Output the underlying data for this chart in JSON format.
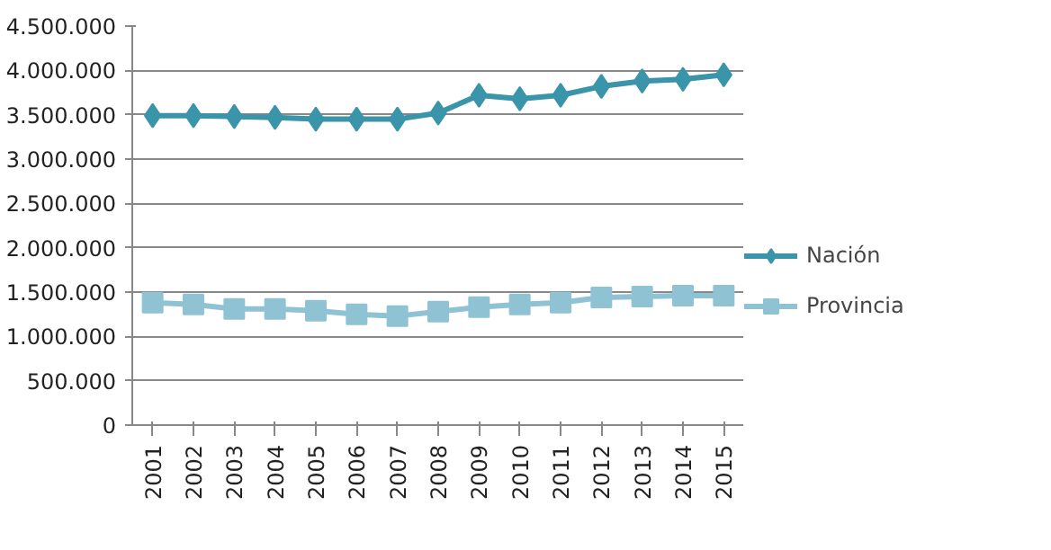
{
  "chart_data": {
    "type": "line",
    "categories": [
      "2001",
      "2002",
      "2003",
      "2004",
      "2005",
      "2006",
      "2007",
      "2008",
      "2009",
      "2010",
      "2011",
      "2012",
      "2013",
      "2014",
      "2015"
    ],
    "series": [
      {
        "name": "Nación",
        "color": "#3a94aa",
        "marker": "diamond",
        "values": [
          3490000,
          3490000,
          3480000,
          3470000,
          3450000,
          3450000,
          3450000,
          3520000,
          3720000,
          3680000,
          3720000,
          3820000,
          3880000,
          3900000,
          3950000
        ]
      },
      {
        "name": "Provincia",
        "color": "#8fc3d4",
        "marker": "square",
        "values": [
          1380000,
          1360000,
          1310000,
          1310000,
          1290000,
          1250000,
          1230000,
          1280000,
          1330000,
          1360000,
          1380000,
          1440000,
          1450000,
          1460000,
          1460000
        ]
      }
    ],
    "ylim": [
      0,
      4500000
    ],
    "yticks": [
      {
        "value": 0,
        "label": "0"
      },
      {
        "value": 500000,
        "label": "500.000"
      },
      {
        "value": 1000000,
        "label": "1.000.000"
      },
      {
        "value": 1500000,
        "label": "1.500.000"
      },
      {
        "value": 2000000,
        "label": "2.000.000"
      },
      {
        "value": 2500000,
        "label": "2.500.000"
      },
      {
        "value": 3000000,
        "label": "3.000.000"
      },
      {
        "value": 3500000,
        "label": "3.500.000"
      },
      {
        "value": 4000000,
        "label": "4.000.000"
      },
      {
        "value": 4500000,
        "label": "4.500.000"
      }
    ],
    "grid": "y",
    "legend": "right",
    "line_style": "solid"
  }
}
